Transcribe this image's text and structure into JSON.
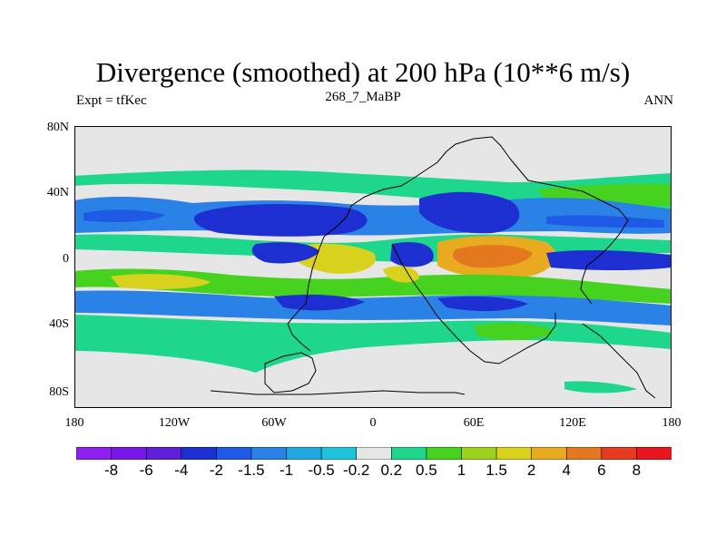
{
  "title": "Divergence (smoothed) at 200 hPa (10**6 m/s)",
  "subtitle_left": "Expt = tfKec",
  "subtitle_center": "268_7_MaBP",
  "subtitle_right": "ANN",
  "y_tick_labels": [
    "80N",
    "40N",
    "0",
    "40S",
    "80S"
  ],
  "x_tick_labels": [
    "180",
    "120W",
    "60W",
    "0",
    "60E",
    "120E",
    "180"
  ],
  "colorbar": {
    "labels": [
      "-8",
      "-6",
      "-4",
      "-2",
      "-1.5",
      "-1",
      "-0.5",
      "-0.2",
      "0.2",
      "0.5",
      "1",
      "1.5",
      "2",
      "4",
      "6",
      "8"
    ],
    "colors": [
      "#8f1ef0",
      "#7818e6",
      "#5f1fd8",
      "#1e2fd2",
      "#1e5ae6",
      "#2a82e6",
      "#24a6e0",
      "#1ec4dc",
      "#e6e6e6",
      "#1ed68c",
      "#46d21e",
      "#9ad21e",
      "#d8d21e",
      "#e8aa1e",
      "#e4781e",
      "#e63a1e",
      "#e8141e"
    ]
  },
  "map_colors": {
    "background": "#e6e6e6",
    "green": "#1ed68c",
    "lime": "#46d21e",
    "yellow": "#d8d21e",
    "orange": "#e8aa1e",
    "red": "#e4781e",
    "cyan": "#1ec4dc",
    "lightblue": "#2a82e6",
    "blue": "#1e5ae6",
    "darkblue": "#1e2fd2"
  }
}
